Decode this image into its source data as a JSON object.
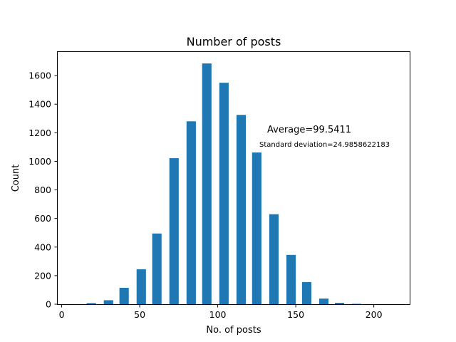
{
  "chart_data": {
    "type": "bar",
    "title": "Number of posts",
    "xlabel": "No. of posts",
    "ylabel": "Count",
    "xlim": [
      -3,
      223
    ],
    "ylim": [
      0,
      1770
    ],
    "xticks": [
      0,
      50,
      100,
      150,
      200
    ],
    "yticks": [
      0,
      200,
      400,
      600,
      800,
      1000,
      1200,
      1400,
      1600
    ],
    "bar_width": 6,
    "color": "#1f77b4",
    "grid": false,
    "series": [
      {
        "name": "Count",
        "x": [
          8,
          19,
          30,
          40,
          51,
          61,
          72,
          83,
          93,
          104,
          115,
          125,
          136,
          147,
          157,
          168,
          178,
          189,
          200,
          210
        ],
        "values": [
          0,
          8,
          28,
          115,
          245,
          495,
          1022,
          1280,
          1685,
          1550,
          1325,
          1062,
          630,
          345,
          155,
          40,
          10,
          3,
          0,
          0
        ]
      }
    ],
    "annotations": [
      {
        "key": "average",
        "text": "Average=99.5411"
      },
      {
        "key": "std",
        "text": "Standard deviation=24.9858622183"
      }
    ]
  }
}
